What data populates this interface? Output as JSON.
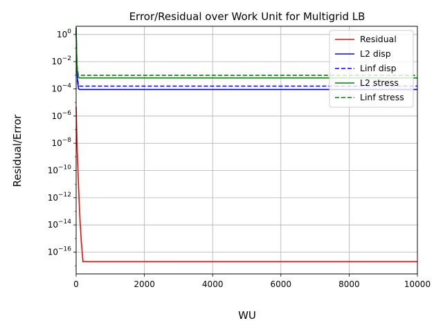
{
  "chart_data": {
    "type": "line",
    "title": "Error/Residual over Work Unit for Multigrid LB",
    "xlabel": "WU",
    "ylabel": "Residual/Error",
    "xlim": [
      0,
      10000
    ],
    "ylim_log10": [
      -17.6,
      0.6
    ],
    "yscale": "log",
    "grid": true,
    "legend_position": "top-right",
    "x_ticks": [
      "0",
      "2000",
      "4000",
      "6000",
      "8000",
      "10000"
    ],
    "y_ticks": [
      {
        "base": "10",
        "exp": "0"
      },
      {
        "base": "10",
        "exp": "−2"
      },
      {
        "base": "10",
        "exp": "−4"
      },
      {
        "base": "10",
        "exp": "−6"
      },
      {
        "base": "10",
        "exp": "−8"
      },
      {
        "base": "10",
        "exp": "−10"
      },
      {
        "base": "10",
        "exp": "−12"
      },
      {
        "base": "10",
        "exp": "−14"
      },
      {
        "base": "10",
        "exp": "−16"
      }
    ],
    "series": [
      {
        "name": "Residual",
        "color": "#ff0000",
        "dash": "solid",
        "x": [
          0,
          30,
          60,
          100,
          150,
          200,
          10000
        ],
        "log10_y": [
          -5.3,
          -8.5,
          -10.5,
          -13.0,
          -15.2,
          -16.7,
          -16.7
        ]
      },
      {
        "name": "L2 disp",
        "color": "#0000ff",
        "dash": "solid",
        "x": [
          0,
          20,
          40,
          70,
          100,
          10000
        ],
        "log10_y": [
          0.3,
          -2.3,
          -3.5,
          -3.98,
          -4.05,
          -4.05
        ]
      },
      {
        "name": "Linf disp",
        "color": "#0000ff",
        "dash": "dashed",
        "x": [
          0,
          20,
          40,
          70,
          100,
          10000
        ],
        "log10_y": [
          0.3,
          -2.0,
          -3.3,
          -3.75,
          -3.8,
          -3.8
        ]
      },
      {
        "name": "L2 stress",
        "color": "#008000",
        "dash": "solid",
        "x": [
          0,
          15,
          30,
          60,
          100,
          10000
        ],
        "log10_y": [
          0.5,
          -1.5,
          -2.6,
          -3.1,
          -3.2,
          -3.2
        ]
      },
      {
        "name": "Linf stress",
        "color": "#008000",
        "dash": "dashed",
        "x": [
          0,
          15,
          30,
          60,
          100,
          10000
        ],
        "log10_y": [
          0.5,
          -1.3,
          -2.4,
          -2.95,
          -3.0,
          -3.0
        ]
      }
    ]
  }
}
